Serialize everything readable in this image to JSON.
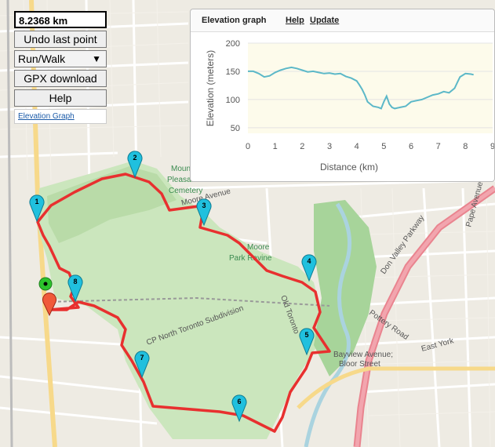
{
  "controls": {
    "distance": "8.2368 km",
    "undo_label": "Undo last point",
    "mode_selected": "Run/Walk",
    "gpx_label": "GPX download",
    "help_label": "Help",
    "elevation_link": "Elevation Graph"
  },
  "elevation_panel": {
    "title": "Elevation graph",
    "help_link": "Help",
    "update_link": "Update"
  },
  "chart_data": {
    "type": "area",
    "xlabel": "Distance (km)",
    "ylabel": "Elevation (meters)",
    "xlim": [
      0,
      9
    ],
    "ylim": [
      40,
      200
    ],
    "x_ticks": [
      "0",
      "1",
      "2",
      "3",
      "4",
      "5",
      "6",
      "7",
      "8",
      "9"
    ],
    "y_ticks": [
      "50",
      "100",
      "150",
      "200"
    ],
    "grid": true,
    "series": [
      {
        "x": [
          0,
          0.2,
          0.4,
          0.6,
          0.8,
          1.0,
          1.2,
          1.4,
          1.6,
          1.8,
          2.0,
          2.2,
          2.4,
          2.6,
          2.8,
          3.0,
          3.2,
          3.4,
          3.6,
          3.8,
          4.0,
          4.1,
          4.2,
          4.3,
          4.4,
          4.6,
          4.8,
          4.9,
          5.0,
          5.1,
          5.2,
          5.3,
          5.4,
          5.6,
          5.8,
          6.0,
          6.2,
          6.4,
          6.6,
          6.8,
          7.0,
          7.2,
          7.4,
          7.6,
          7.7,
          7.8,
          8.0,
          8.2,
          8.3
        ],
        "y": [
          150,
          150,
          146,
          140,
          142,
          148,
          152,
          155,
          157,
          155,
          152,
          149,
          150,
          148,
          146,
          147,
          145,
          146,
          141,
          138,
          133,
          126,
          118,
          108,
          96,
          88,
          86,
          84,
          96,
          106,
          92,
          86,
          84,
          86,
          88,
          96,
          98,
          100,
          104,
          108,
          110,
          114,
          112,
          120,
          130,
          140,
          146,
          145,
          144
        ]
      }
    ]
  },
  "map": {
    "markers": [
      "1",
      "2",
      "3",
      "4",
      "5",
      "6",
      "7",
      "8"
    ],
    "labels": {
      "cemetery1": "Mount",
      "cemetery2": "Pleasant",
      "cemetery3": "Cemetery",
      "moore_ave": "Moore Avenue",
      "moore_park1": "Moore",
      "moore_park2": "Park Ravine",
      "cp_rail": "CP North Toronto Subdivision",
      "don_valley": "Don Valley Parkway",
      "bayview1": "Bayview Avenue;",
      "bayview2": "Bloor Street",
      "pottery": "Pottery Road",
      "east_york": "East York",
      "pape": "Pape Avenue",
      "old_toronto": "Old Toronto"
    },
    "colors": {
      "route": "#e8302f",
      "marker": "#20c0de",
      "park": "#cbe6bd",
      "water": "#aad3df"
    }
  }
}
